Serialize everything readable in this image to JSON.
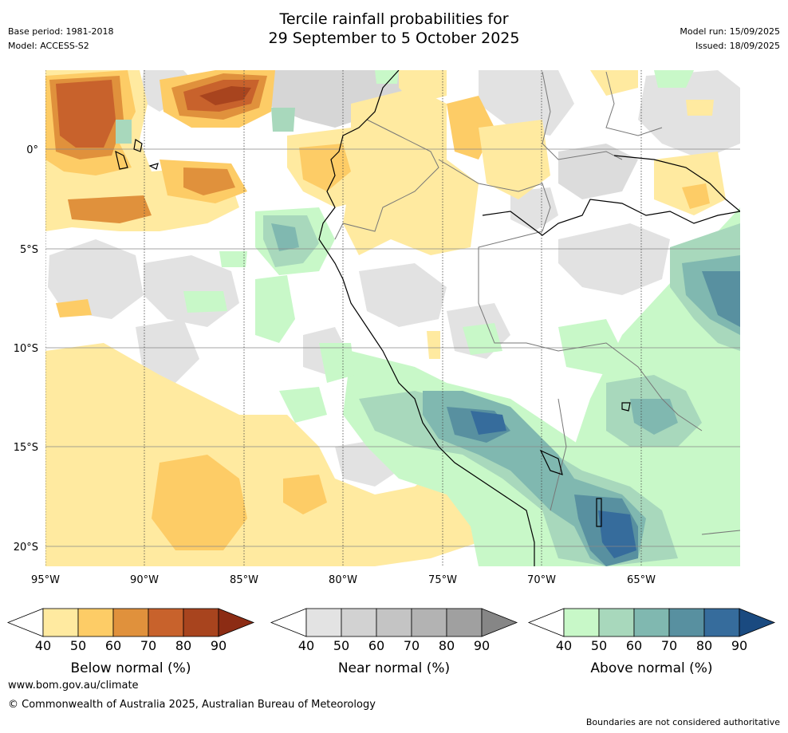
{
  "header": {
    "title_line1": "Tercile rainfall probabilities for",
    "title_line2": "29 September to 5 October 2025",
    "base_period": "Base period: 1981-2018",
    "model": "Model: ACCESS-S2",
    "model_run": "Model run: 15/09/2025",
    "issued": "Issued: 18/09/2025"
  },
  "map": {
    "lon_labels": [
      "95°W",
      "90°W",
      "85°W",
      "80°W",
      "75°W",
      "70°W",
      "65°W"
    ],
    "lat_labels": [
      "0°",
      "5°S",
      "10°S",
      "15°S",
      "20°S"
    ]
  },
  "colorbars": [
    {
      "label": "Below normal (%)",
      "ticks": [
        "40",
        "50",
        "60",
        "70",
        "80",
        "90"
      ],
      "colors": [
        "#ffeaa0",
        "#fdcc66",
        "#e0913c",
        "#c8622c",
        "#a8441e",
        "#8c2c14"
      ]
    },
    {
      "label": "Near normal (%)",
      "ticks": [
        "40",
        "50",
        "60",
        "70",
        "80",
        "90"
      ],
      "colors": [
        "#e3e3e3",
        "#d2d2d2",
        "#c4c4c4",
        "#b3b3b3",
        "#a0a0a0",
        "#868686"
      ]
    },
    {
      "label": "Above normal (%)",
      "ticks": [
        "40",
        "50",
        "60",
        "70",
        "80",
        "90"
      ],
      "colors": [
        "#c8f8c8",
        "#a8d8bc",
        "#80b8b0",
        "#5890a0",
        "#366c9c",
        "#1a4a80"
      ]
    }
  ],
  "footer": {
    "website": "www.bom.gov.au/climate",
    "copyright": "© Commonwealth of Australia 2025, Australian Bureau of Meteorology",
    "disclaimer": "Boundaries are not considered authoritative"
  }
}
